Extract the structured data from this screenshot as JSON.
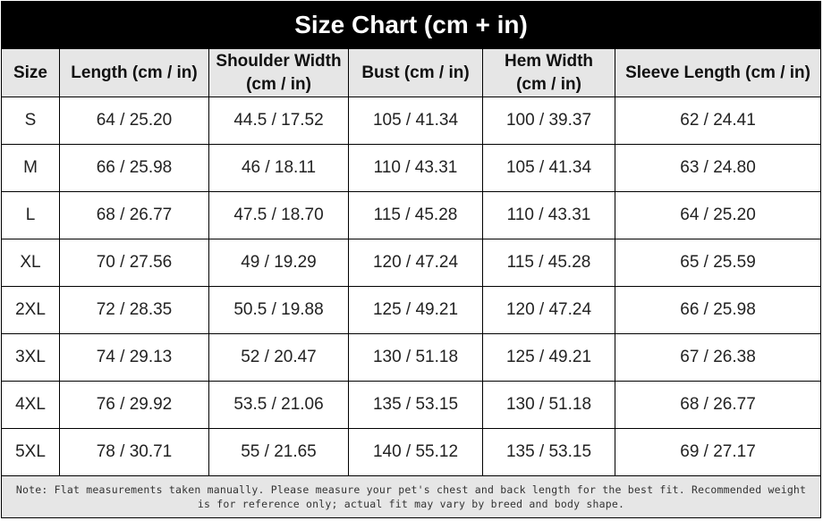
{
  "table": {
    "title": "Size Chart  (cm + in)",
    "headers": [
      "Size",
      "Length (cm / in)",
      "Shoulder Width\n(cm / in)",
      "Bust (cm / in)",
      "Hem Width\n(cm / in)",
      "Sleeve Length (cm / in)"
    ],
    "rows": [
      [
        "S",
        "64 / 25.20",
        "44.5 / 17.52",
        "105 / 41.34",
        "100 / 39.37",
        "62 / 24.41"
      ],
      [
        "M",
        "66 / 25.98",
        "46 / 18.11",
        "110 / 43.31",
        "105 / 41.34",
        "63 / 24.80"
      ],
      [
        "L",
        "68 / 26.77",
        "47.5 / 18.70",
        "115 / 45.28",
        "110 / 43.31",
        "64 / 25.20"
      ],
      [
        "XL",
        "70 / 27.56",
        "49 / 19.29",
        "120 / 47.24",
        "115 / 45.28",
        "65 / 25.59"
      ],
      [
        "2XL",
        "72 / 28.35",
        "50.5 / 19.88",
        "125 / 49.21",
        "120 / 47.24",
        "66 / 25.98"
      ],
      [
        "3XL",
        "74 / 29.13",
        "52 / 20.47",
        "130 / 51.18",
        "125 / 49.21",
        "67 / 26.38"
      ],
      [
        "4XL",
        "76 / 29.92",
        "53.5 / 21.06",
        "135 / 53.15",
        "130 / 51.18",
        "68 / 26.77"
      ],
      [
        "5XL",
        "78 / 30.71",
        "55 / 21.65",
        "140 / 55.12",
        "135 / 53.15",
        "69 / 27.17"
      ]
    ],
    "note": "Note: Flat measurements taken manually. Please measure your pet's chest and back length for the best fit. Recommended weight is for reference only; actual fit may vary by breed and body shape."
  }
}
